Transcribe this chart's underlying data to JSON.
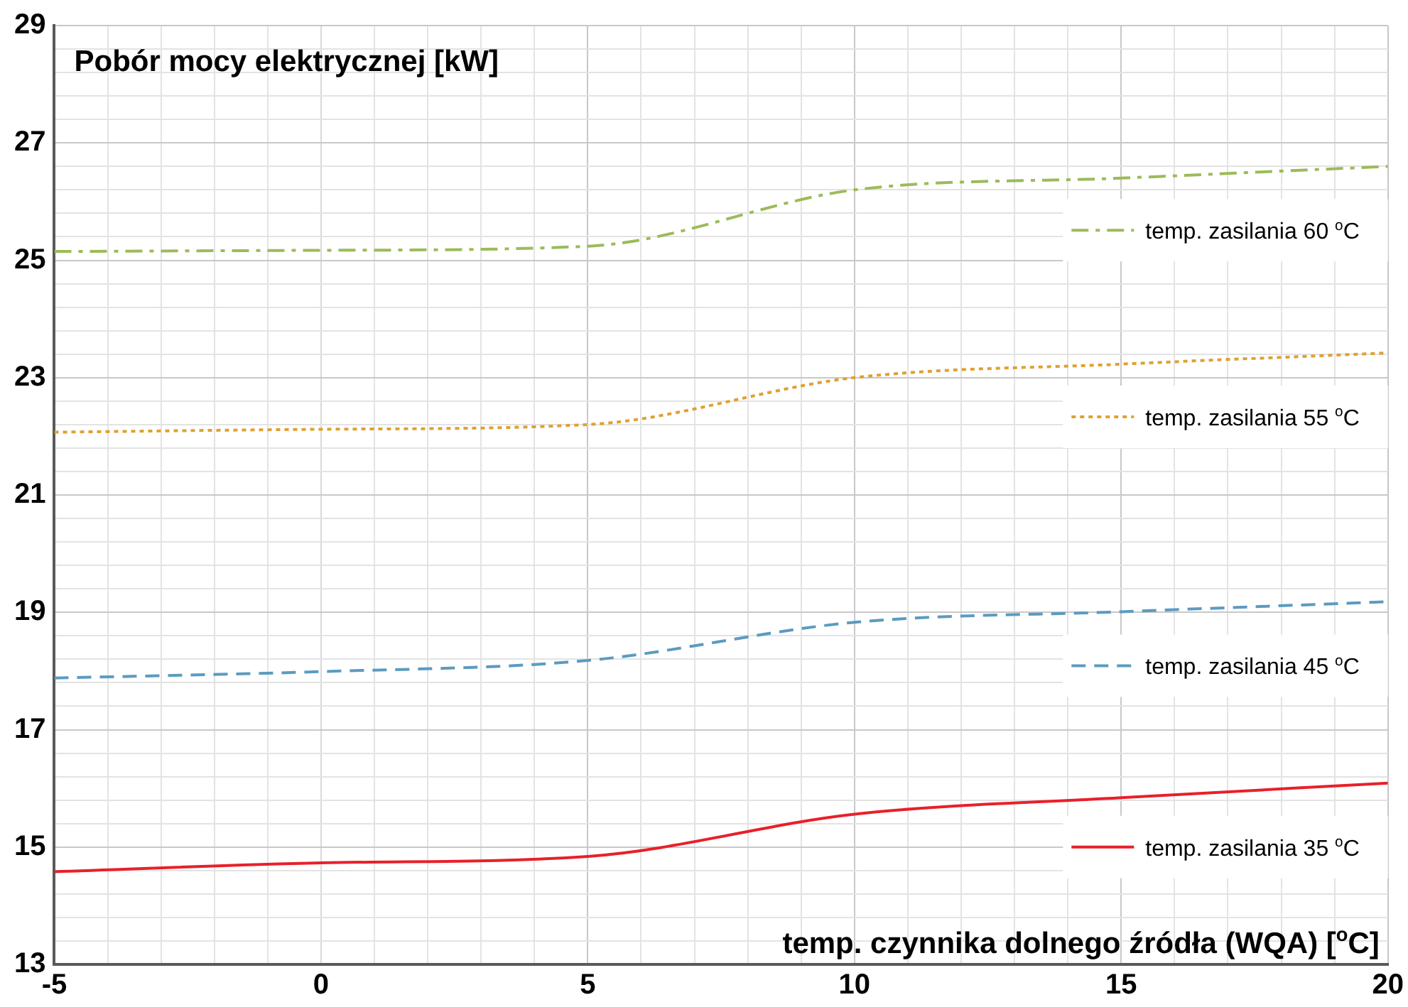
{
  "chart_data": {
    "type": "line",
    "title": "Pobór mocy elektrycznej [kW]",
    "xlabel": "temp. czynnika dolnego źródła (WQA) [$^{o}$C]",
    "x": [
      -5,
      0,
      5,
      10,
      15,
      20
    ],
    "series": [
      {
        "name": "temp. zasilania 60 $^{o}$C",
        "color": "#9bbb59",
        "line_style": "dashdot",
        "values": [
          25.15,
          25.17,
          25.24,
          26.2,
          26.4,
          26.6
        ]
      },
      {
        "name": "temp. zasilania 55 $^{o}$C",
        "color": "#e0a030",
        "line_style": "dotted",
        "values": [
          22.07,
          22.12,
          22.2,
          23.0,
          23.23,
          23.42
        ]
      },
      {
        "name": "temp. zasilania 45 $^{o}$C",
        "color": "#5b9bc0",
        "line_style": "dashed",
        "values": [
          17.88,
          17.99,
          18.18,
          18.83,
          19.01,
          19.18
        ]
      },
      {
        "name": "temp. zasilania 35 $^{o}$C",
        "color": "#e8202a",
        "line_style": "solid",
        "values": [
          14.58,
          14.73,
          14.84,
          15.56,
          15.84,
          16.09
        ]
      }
    ],
    "xlim": [
      -5,
      20
    ],
    "xticks": [
      -5,
      {
        "value": -4,
        "label": null
      },
      {
        "value": -3,
        "label": null
      },
      {
        "value": -2,
        "label": null
      },
      {
        "value": -1,
        "label": null
      },
      0,
      {
        "value": 1,
        "label": null
      },
      {
        "value": 2,
        "label": null
      },
      {
        "value": 3,
        "label": null
      },
      {
        "value": 4,
        "label": null
      },
      5,
      {
        "value": 6,
        "label": null
      },
      {
        "value": 7,
        "label": null
      },
      {
        "value": 8,
        "label": null
      },
      {
        "value": 9,
        "label": null
      },
      10,
      {
        "value": 11,
        "label": null
      },
      {
        "value": 12,
        "label": null
      },
      {
        "value": 13,
        "label": null
      },
      {
        "value": 14,
        "label": null
      },
      15,
      {
        "value": 16,
        "label": null
      },
      {
        "value": 17,
        "label": null
      },
      {
        "value": 18,
        "label": null
      },
      {
        "value": 19,
        "label": null
      },
      20
    ],
    "ylim": [
      13,
      29
    ],
    "yticks": [
      13,
      {
        "value": 13.4,
        "label": null
      },
      {
        "value": 13.8,
        "label": null
      },
      {
        "value": 14.2,
        "label": null
      },
      {
        "value": 14.6,
        "label": null
      },
      15,
      {
        "value": 15.4,
        "label": null
      },
      {
        "value": 15.8,
        "label": null
      },
      {
        "value": 16.2,
        "label": null
      },
      {
        "value": 16.6,
        "label": null
      },
      17,
      {
        "value": 17.4,
        "label": null
      },
      {
        "value": 17.8,
        "label": null
      },
      {
        "value": 18.2,
        "label": null
      },
      {
        "value": 18.6,
        "label": null
      },
      19,
      {
        "value": 19.4,
        "label": null
      },
      {
        "value": 19.8,
        "label": null
      },
      {
        "value": 20.2,
        "label": null
      },
      {
        "value": 20.6,
        "label": null
      },
      21,
      {
        "value": 21.4,
        "label": null
      },
      {
        "value": 21.8,
        "label": null
      },
      {
        "value": 22.2,
        "label": null
      },
      {
        "value": 22.6,
        "label": null
      },
      23,
      {
        "value": 23.4,
        "label": null
      },
      {
        "value": 23.8,
        "label": null
      },
      {
        "value": 24.2,
        "label": null
      },
      {
        "value": 24.6,
        "label": null
      },
      25,
      {
        "value": 25.4,
        "label": null
      },
      {
        "value": 25.8,
        "label": null
      },
      {
        "value": 26.2,
        "label": null
      },
      {
        "value": 26.6,
        "label": null
      },
      27,
      {
        "value": 27.4,
        "label": null
      },
      {
        "value": 27.8,
        "label": null
      },
      {
        "value": 28.2,
        "label": null
      },
      {
        "value": 28.6,
        "label": null
      },
      29
    ],
    "grid": true,
    "legend": "right",
    "marker": "none"
  }
}
